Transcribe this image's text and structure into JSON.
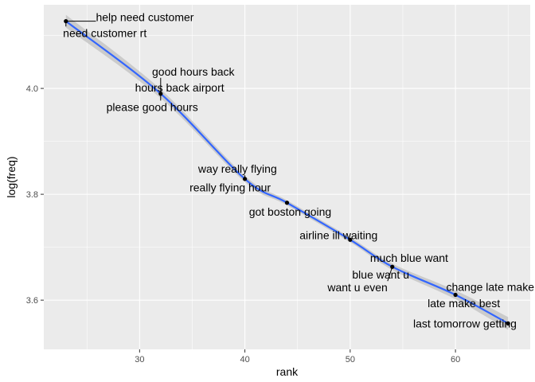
{
  "chart_data": {
    "type": "scatter",
    "xlabel": "rank",
    "ylabel": "log(freq)",
    "xlim": [
      20.9,
      67.1
    ],
    "ylim": [
      3.507,
      4.158
    ],
    "x_ticks": [
      30,
      40,
      50,
      60
    ],
    "y_ticks": [
      3.6,
      3.8,
      4.0
    ],
    "x_tick_labels": [
      "30",
      "40",
      "50",
      "60"
    ],
    "y_tick_labels": [
      "3.6",
      "3.8",
      "4.0"
    ],
    "x_minor_ticks": [
      25,
      35,
      45,
      55,
      65
    ],
    "y_minor_ticks": [
      3.5,
      3.7,
      3.9,
      4.1
    ],
    "grid": true,
    "smooth_line": true,
    "colors": {
      "panel": "#ebebeb",
      "grid": "#ffffff",
      "point": "#000000",
      "smooth": "#3366ff",
      "ribbon": "#c5c5c5"
    },
    "points": [
      {
        "x": 23,
        "y": 4.127
      },
      {
        "x": 32,
        "y": 3.99
      },
      {
        "x": 40,
        "y": 3.829
      },
      {
        "x": 44,
        "y": 3.784
      },
      {
        "x": 50,
        "y": 3.714
      },
      {
        "x": 54,
        "y": 3.663
      },
      {
        "x": 60,
        "y": 3.61
      },
      {
        "x": 65,
        "y": 3.556
      }
    ],
    "labels": [
      {
        "text": "help need customer",
        "x": 30.5,
        "y": 4.135,
        "pt": 0
      },
      {
        "text": "need customer rt",
        "x": 26.7,
        "y": 4.105,
        "pt": 0
      },
      {
        "text": "good hours back",
        "x": 35.1,
        "y": 4.032,
        "pt": 1
      },
      {
        "text": "hours back airport",
        "x": 33.8,
        "y": 4.002,
        "pt": 1
      },
      {
        "text": "please good hours",
        "x": 31.2,
        "y": 3.965,
        "pt": 1
      },
      {
        "text": "way really flying",
        "x": 39.3,
        "y": 3.848,
        "pt": 2
      },
      {
        "text": "really flying hour",
        "x": 38.6,
        "y": 3.813,
        "pt": 2
      },
      {
        "text": "got boston going",
        "x": 44.3,
        "y": 3.767,
        "pt": 3
      },
      {
        "text": "airline ill waiting",
        "x": 48.9,
        "y": 3.723,
        "pt": 4
      },
      {
        "text": "much blue want",
        "x": 55.6,
        "y": 3.68,
        "pt": 5
      },
      {
        "text": "blue want u",
        "x": 52.9,
        "y": 3.648,
        "pt": 5
      },
      {
        "text": "want u even",
        "x": 50.7,
        "y": 3.624,
        "pt": 5
      },
      {
        "text": "change late make",
        "x": 63.3,
        "y": 3.625,
        "pt": 6
      },
      {
        "text": "late make best",
        "x": 60.8,
        "y": 3.594,
        "pt": 6
      },
      {
        "text": "last tomorrow getting",
        "x": 60.9,
        "y": 3.556,
        "pt": 7
      }
    ]
  }
}
